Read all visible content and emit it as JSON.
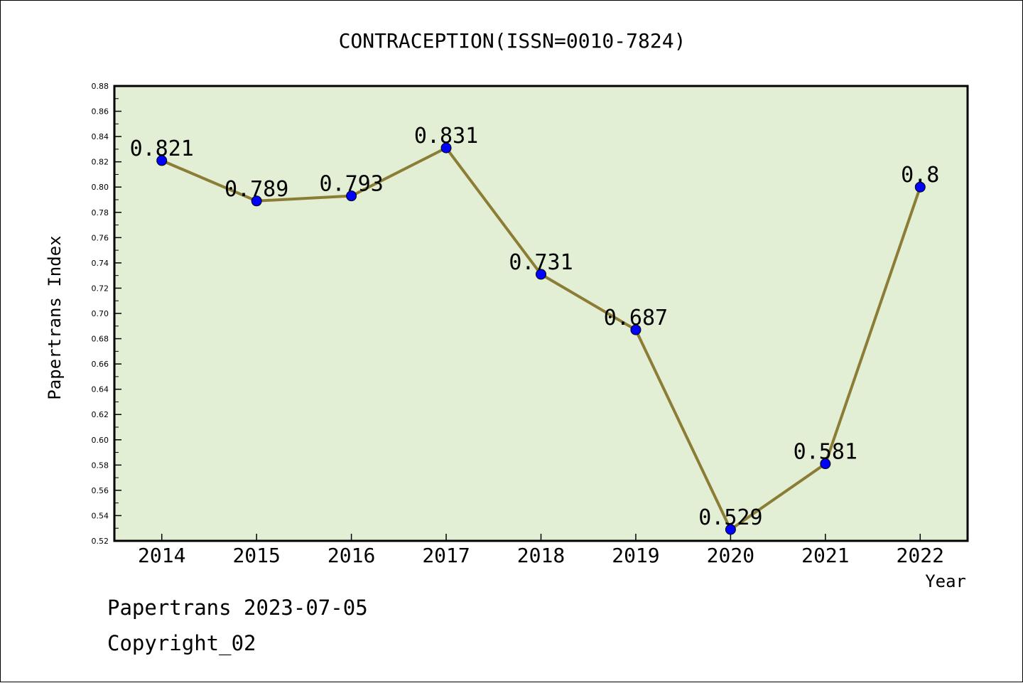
{
  "colors": {
    "background": "#ffffff",
    "plot_background": "#e2efd5",
    "line": "#8b7d35",
    "marker": "#0000ff",
    "text": "#000000"
  },
  "footer": {
    "line1": "Papertrans 2023-07-05",
    "line2": "Copyright_02"
  },
  "chart_data": {
    "type": "line",
    "title": "CONTRACEPTION(ISSN=0010-7824)",
    "xlabel": "Year",
    "ylabel": "Papertrans Index",
    "categories": [
      "2014",
      "2015",
      "2016",
      "2017",
      "2018",
      "2019",
      "2020",
      "2021",
      "2022"
    ],
    "values": [
      0.821,
      0.789,
      0.793,
      0.831,
      0.731,
      0.687,
      0.529,
      0.581,
      0.8
    ],
    "data_labels": [
      "0.821",
      "0.789",
      "0.793",
      "0.831",
      "0.731",
      "0.687",
      "0.529",
      "0.581",
      "0.8"
    ],
    "ylim": [
      0.52,
      0.88
    ],
    "y_ticks": [
      "0.52",
      "0.54",
      "0.56",
      "0.58",
      "0.60",
      "0.62",
      "0.64",
      "0.66",
      "0.68",
      "0.70",
      "0.72",
      "0.74",
      "0.76",
      "0.78",
      "0.80",
      "0.82",
      "0.84",
      "0.86",
      "0.88"
    ],
    "grid": false,
    "legend": "none"
  }
}
